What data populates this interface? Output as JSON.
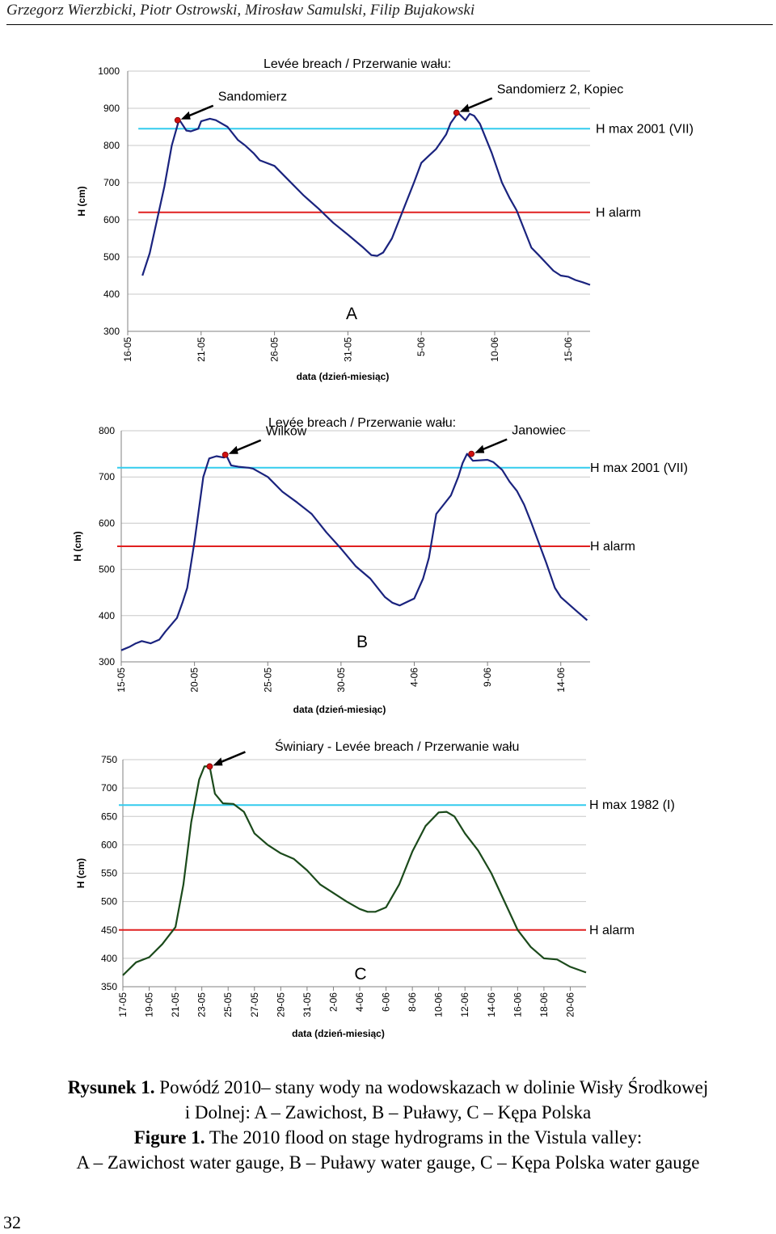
{
  "header": {
    "authors": "Grzegorz Wierzbicki, Piotr Ostrowski, Mirosław Samulski, Filip Bujakowski"
  },
  "chart_data": [
    {
      "type": "line",
      "panel": "A",
      "ylabel": "H (cm)",
      "xlabel": "data (dzień-miesiąc)",
      "ylim": [
        300,
        1000
      ],
      "yticks": [
        300,
        400,
        500,
        600,
        700,
        800,
        900,
        1000
      ],
      "xlim": [
        0,
        31.5
      ],
      "xticks": [
        {
          "pos": 0,
          "label": "16-05"
        },
        {
          "pos": 5,
          "label": "21-05"
        },
        {
          "pos": 10,
          "label": "26-05"
        },
        {
          "pos": 15,
          "label": "31-05"
        },
        {
          "pos": 20,
          "label": "5-06"
        },
        {
          "pos": 25,
          "label": "10-06"
        },
        {
          "pos": 30,
          "label": "15-06"
        }
      ],
      "series": [
        {
          "color": "#1a237e",
          "x": [
            1,
            1.5,
            2,
            2.5,
            3,
            3.5,
            4,
            4.3,
            4.8,
            5,
            5.6,
            6,
            6.8,
            7.5,
            8,
            8.6,
            9,
            10,
            11,
            12,
            13,
            14,
            15,
            16,
            16.6,
            17,
            17.4,
            18,
            19,
            19.5,
            20,
            20.5,
            21,
            21.7,
            22,
            22.5,
            23,
            23.3,
            23.6,
            24,
            24.8,
            25.5,
            26,
            26.5,
            27,
            27.5,
            28,
            28.6,
            29,
            29.5,
            30,
            30.5,
            31,
            31.5
          ],
          "values": [
            450,
            510,
            600,
            690,
            800,
            870,
            840,
            838,
            845,
            865,
            872,
            868,
            850,
            815,
            800,
            778,
            760,
            745,
            705,
            665,
            630,
            592,
            560,
            527,
            505,
            503,
            512,
            550,
            650,
            700,
            753,
            772,
            790,
            830,
            860,
            888,
            868,
            885,
            880,
            858,
            780,
            700,
            660,
            625,
            575,
            525,
            505,
            480,
            463,
            450,
            447,
            438,
            432,
            425
          ]
        }
      ],
      "reference_lines": [
        {
          "label": "H max 2001 (VII)",
          "value": 845,
          "color": "#33ccee"
        },
        {
          "label": "H alarm",
          "value": 620,
          "color": "#e02020"
        }
      ],
      "breach_points": [
        {
          "x": 3.4,
          "value": 868
        },
        {
          "x": 22.4,
          "value": 888
        }
      ],
      "annotations": {
        "title": "Levée breach / Przerwanie wału:",
        "points": [
          "Sandomierz",
          "Sandomierz 2, Kopiec"
        ]
      },
      "panel_label": "A"
    },
    {
      "type": "line",
      "panel": "B",
      "ylabel": "H (cm)",
      "xlabel": "data (dzień-miesiąc)",
      "ylim": [
        300,
        800
      ],
      "yticks": [
        300,
        400,
        500,
        600,
        700,
        800
      ],
      "xlim": [
        0,
        32
      ],
      "xticks": [
        {
          "pos": 0,
          "label": "15-05"
        },
        {
          "pos": 5,
          "label": "20-05"
        },
        {
          "pos": 10,
          "label": "25-05"
        },
        {
          "pos": 15,
          "label": "30-05"
        },
        {
          "pos": 20,
          "label": "4-06"
        },
        {
          "pos": 25,
          "label": "9-06"
        },
        {
          "pos": 30,
          "label": "14-06"
        }
      ],
      "series": [
        {
          "color": "#1a237e",
          "x": [
            0,
            0.6,
            1,
            1.4,
            2,
            2.6,
            3,
            3.8,
            4.2,
            4.5,
            5,
            5.6,
            6,
            6.5,
            7,
            7.2,
            7.5,
            8,
            8.7,
            9,
            10,
            11,
            12,
            13,
            14,
            15,
            16,
            17,
            17.6,
            18,
            18.5,
            19,
            20,
            20.6,
            21,
            21.5,
            22,
            22.5,
            23,
            23.3,
            23.6,
            24,
            25,
            25.4,
            26,
            26.5,
            27,
            27.5,
            28,
            29,
            29.6,
            30,
            31,
            31.8
          ],
          "values": [
            325,
            333,
            340,
            345,
            340,
            348,
            365,
            395,
            430,
            460,
            560,
            700,
            740,
            745,
            742,
            745,
            725,
            722,
            720,
            718,
            700,
            668,
            645,
            620,
            580,
            545,
            507,
            480,
            456,
            440,
            428,
            422,
            437,
            480,
            525,
            620,
            640,
            660,
            700,
            730,
            750,
            735,
            737,
            732,
            715,
            690,
            670,
            640,
            600,
            515,
            460,
            440,
            412,
            390
          ]
        }
      ],
      "reference_lines": [
        {
          "label": "H max 2001 (VII)",
          "value": 720,
          "color": "#33ccee"
        },
        {
          "label": "H alarm",
          "value": 550,
          "color": "#e02020"
        }
      ],
      "breach_points": [
        {
          "x": 7.1,
          "value": 748
        },
        {
          "x": 23.9,
          "value": 750
        }
      ],
      "annotations": {
        "title": "Levée breach / Przerwanie wału:",
        "points": [
          "Wilków",
          "Janowiec"
        ]
      },
      "panel_label": "B"
    },
    {
      "type": "line",
      "panel": "C",
      "ylabel": "H (cm)",
      "xlabel": "data (dzień-miesiąc)",
      "ylim": [
        350,
        750
      ],
      "yticks": [
        350,
        400,
        450,
        500,
        550,
        600,
        650,
        700,
        750
      ],
      "xlim": [
        0,
        17.6
      ],
      "xticks": [
        {
          "pos": 0,
          "label": "17-05"
        },
        {
          "pos": 1,
          "label": "19-05"
        },
        {
          "pos": 2,
          "label": "21-05"
        },
        {
          "pos": 3,
          "label": "23-05"
        },
        {
          "pos": 4,
          "label": "25-05"
        },
        {
          "pos": 5,
          "label": "27-05"
        },
        {
          "pos": 6,
          "label": "29-05"
        },
        {
          "pos": 7,
          "label": "31-05"
        },
        {
          "pos": 8,
          "label": "2-06"
        },
        {
          "pos": 9,
          "label": "4-06"
        },
        {
          "pos": 10,
          "label": "6-06"
        },
        {
          "pos": 11,
          "label": "8-06"
        },
        {
          "pos": 12,
          "label": "10-06"
        },
        {
          "pos": 13,
          "label": "12-06"
        },
        {
          "pos": 14,
          "label": "14-06"
        },
        {
          "pos": 15,
          "label": "16-06"
        },
        {
          "pos": 16,
          "label": "18-06"
        },
        {
          "pos": 17,
          "label": "20-06"
        }
      ],
      "series": [
        {
          "color": "#1b4a1b",
          "x": [
            0,
            0.5,
            1,
            1.5,
            2,
            2.3,
            2.6,
            2.9,
            3.1,
            3.3,
            3.5,
            3.8,
            4.2,
            4.6,
            5,
            5.5,
            6,
            6.5,
            7,
            7.5,
            8,
            8.5,
            9,
            9.3,
            9.6,
            10,
            10.5,
            11,
            11.5,
            12,
            12.3,
            12.6,
            13,
            13.5,
            14,
            14.5,
            15,
            15.5,
            16,
            16.5,
            17,
            17.6
          ],
          "values": [
            370,
            393,
            402,
            425,
            455,
            530,
            640,
            715,
            738,
            738,
            690,
            673,
            672,
            658,
            620,
            600,
            585,
            575,
            555,
            530,
            515,
            500,
            487,
            482,
            482,
            490,
            530,
            588,
            633,
            657,
            658,
            650,
            620,
            590,
            550,
            500,
            450,
            420,
            400,
            398,
            385,
            375
          ]
        }
      ],
      "reference_lines": [
        {
          "label": "H max 1982 (I)",
          "value": 670,
          "color": "#33ccee"
        },
        {
          "label": "H alarm",
          "value": 450,
          "color": "#e02020"
        }
      ],
      "breach_points": [
        {
          "x": 3.3,
          "value": 738
        }
      ],
      "annotations": {
        "title": "Świniary - Levée breach / Przerwanie wału",
        "points": []
      },
      "panel_label": "C"
    }
  ],
  "caption": {
    "pl_label": "Rysunek 1.",
    "pl_text_1": " Powódź 2010– stany wody na wodowskazach w dolinie Wisły Środkowej",
    "pl_text_2": "i Dolnej: A – Zawichost, B – Puławy, C – Kępa Polska",
    "en_label": "Figure 1.",
    "en_text_1": " The 2010 flood on stage hydrograms in the Vistula valley:",
    "en_text_2": "A – Zawichost water gauge, B – Puławy water gauge, C – Kępa Polska water gauge"
  },
  "page_number": "32"
}
